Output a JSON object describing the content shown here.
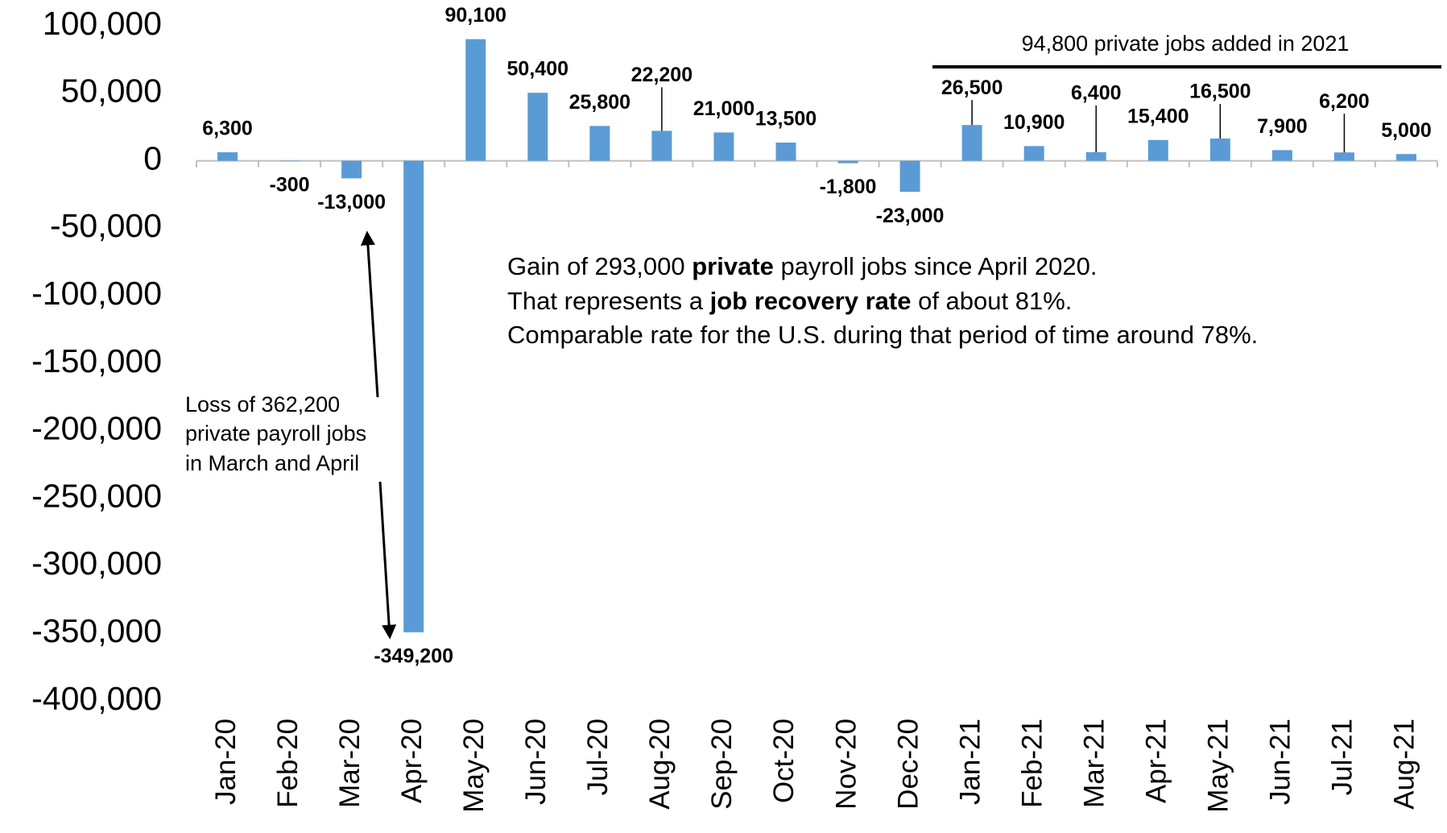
{
  "chart_data": {
    "type": "bar",
    "categories": [
      "Jan-20",
      "Feb-20",
      "Mar-20",
      "Apr-20",
      "May-20",
      "Jun-20",
      "Jul-20",
      "Aug-20",
      "Sep-20",
      "Oct-20",
      "Nov-20",
      "Dec-20",
      "Jan-21",
      "Feb-21",
      "Mar-21",
      "Apr-21",
      "May-21",
      "Jun-21",
      "Jul-21",
      "Aug-21"
    ],
    "values": [
      6300,
      -300,
      -13000,
      -349200,
      90100,
      50400,
      25800,
      22200,
      21000,
      13500,
      -1800,
      -23000,
      26500,
      10900,
      6400,
      15400,
      16500,
      7900,
      6200,
      5000
    ],
    "value_labels": [
      "6,300",
      "-300",
      "-13,000",
      "-349,200",
      "90,100",
      "50,400",
      "25,800",
      "22,200",
      "21,000",
      "13,500",
      "-1,800",
      "-23,000",
      "26,500",
      "10,900",
      "6,400",
      "15,400",
      "16,500",
      "7,900",
      "6,200",
      "5,000"
    ],
    "color": "#5b9bd5",
    "ylim": [
      -400000,
      100000
    ],
    "yticks": [
      {
        "value": -400000,
        "label": "-400,000"
      },
      {
        "value": -350000,
        "label": "-350,000"
      },
      {
        "value": -300000,
        "label": "-300,000"
      },
      {
        "value": -250000,
        "label": "-250,000"
      },
      {
        "value": -200000,
        "label": "-200,000"
      },
      {
        "value": -150000,
        "label": "-150,000"
      },
      {
        "value": -100000,
        "label": "-100,000"
      },
      {
        "value": -50000,
        "label": "-50,000"
      },
      0,
      {
        "value": 50000,
        "label": "50,000"
      },
      {
        "value": 100000,
        "label": "100,000"
      }
    ],
    "grid": false,
    "annotations": {
      "year_2021": "94,800 private jobs added in 2021",
      "gain": [
        [
          "Gain of 293,000",
          "private",
          "payroll jobs since April 2020."
        ],
        [
          "That represents a",
          "job recovery rate",
          "of about 81%."
        ],
        [
          "Comparable rate for the U.S. during that period of time around 78%."
        ]
      ],
      "loss": [
        "Loss of 362,200",
        "private payroll jobs",
        "in March and April"
      ]
    }
  }
}
